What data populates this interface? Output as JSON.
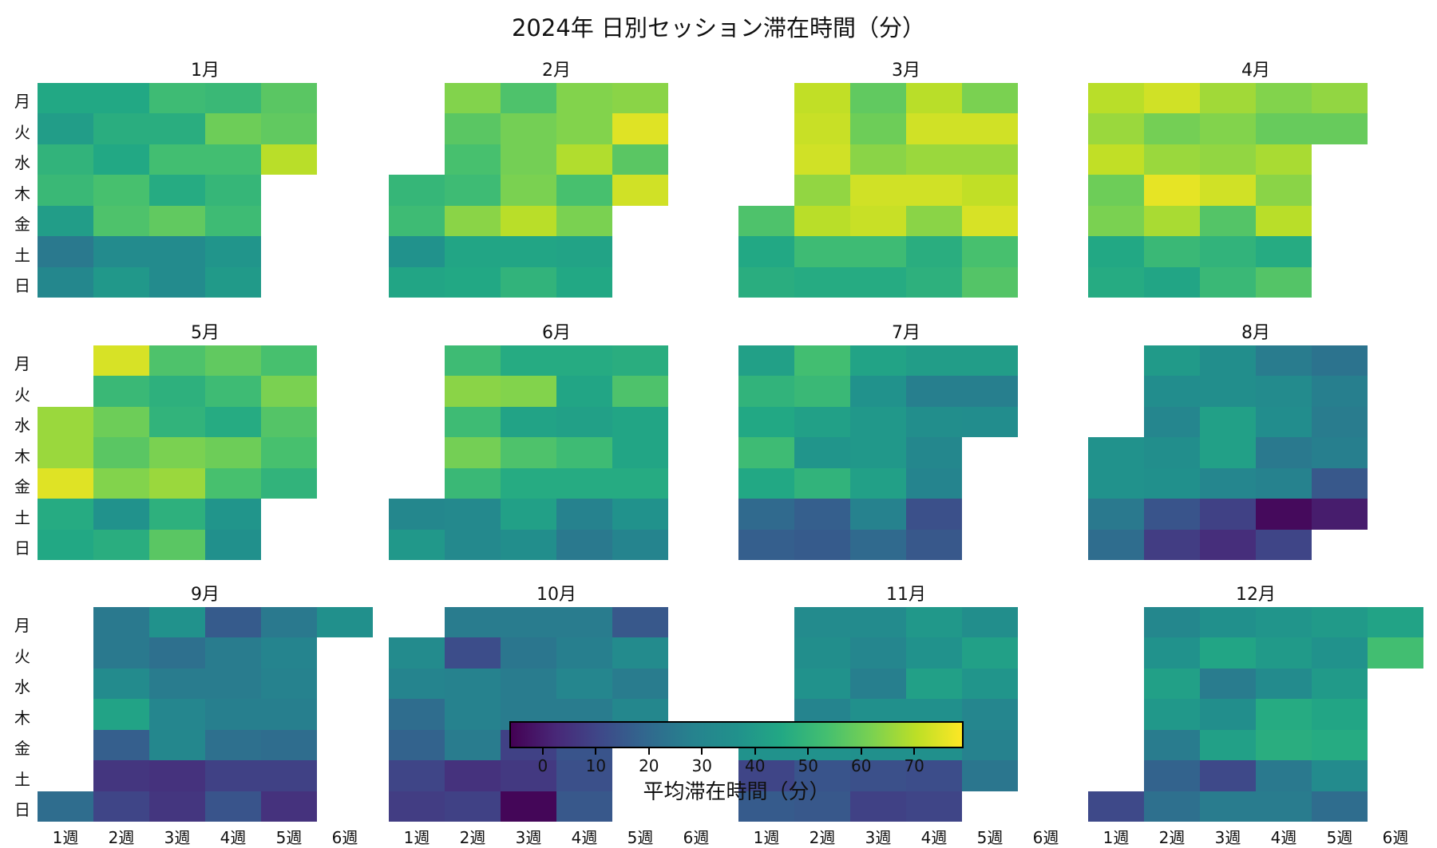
{
  "title": "2024年 日別セッション滞在時間（分）",
  "weekday_labels": [
    "月",
    "火",
    "水",
    "木",
    "金",
    "土",
    "日"
  ],
  "week_labels": [
    "1週",
    "2週",
    "3週",
    "4週",
    "5週",
    "6週"
  ],
  "colorbar": {
    "label": "平均滞在時間（分）",
    "ticks": [
      0,
      10,
      20,
      30,
      40,
      50,
      60,
      70
    ],
    "vmin": -6,
    "vmax": 79,
    "colormap": "viridis"
  },
  "chart_data": {
    "type": "heatmap",
    "title": "2024年 日別セッション滞在時間（分）",
    "value_label": "平均滞在時間（分）",
    "rows": [
      "月",
      "火",
      "水",
      "木",
      "金",
      "土",
      "日"
    ],
    "columns": [
      "1週",
      "2週",
      "3週",
      "4週",
      "5週",
      "6週"
    ],
    "vmin": -6,
    "vmax": 79,
    "months": [
      {
        "label": "1月",
        "values": [
          [
            45,
            45,
            52,
            51,
            57,
            null
          ],
          [
            41,
            47,
            47,
            60,
            58,
            null
          ],
          [
            49,
            45,
            53,
            53,
            70,
            null
          ],
          [
            51,
            54,
            46,
            50,
            null,
            null
          ],
          [
            41,
            55,
            58,
            52,
            null,
            null
          ],
          [
            25,
            33,
            33,
            38,
            null,
            null
          ],
          [
            31,
            39,
            33,
            40,
            null,
            null
          ]
        ]
      },
      {
        "label": "2月",
        "values": [
          [
            null,
            63,
            55,
            63,
            64,
            null
          ],
          [
            null,
            57,
            61,
            63,
            75,
            null
          ],
          [
            null,
            54,
            61,
            69,
            57,
            null
          ],
          [
            50,
            52,
            62,
            54,
            73,
            null
          ],
          [
            52,
            64,
            70,
            62,
            null,
            null
          ],
          [
            37,
            44,
            44,
            43,
            null,
            null
          ],
          [
            44,
            45,
            49,
            45,
            null,
            null
          ]
        ]
      },
      {
        "label": "3月",
        "values": [
          [
            null,
            71,
            58,
            70,
            62,
            null
          ],
          [
            null,
            72,
            60,
            73,
            73,
            null
          ],
          [
            null,
            73,
            64,
            66,
            66,
            null
          ],
          [
            null,
            65,
            73,
            73,
            71,
            null
          ],
          [
            55,
            70,
            72,
            64,
            74,
            null
          ],
          [
            45,
            52,
            52,
            47,
            54,
            null
          ],
          [
            47,
            46,
            46,
            48,
            56,
            null
          ]
        ]
      },
      {
        "label": "4月",
        "values": [
          [
            70,
            73,
            67,
            63,
            65,
            null
          ],
          [
            66,
            61,
            63,
            59,
            59,
            null
          ],
          [
            71,
            66,
            65,
            68,
            null,
            null
          ],
          [
            60,
            76,
            73,
            64,
            null,
            null
          ],
          [
            62,
            68,
            56,
            70,
            null,
            null
          ],
          [
            45,
            51,
            49,
            46,
            null,
            null
          ],
          [
            46,
            44,
            51,
            56,
            null,
            null
          ]
        ]
      },
      {
        "label": "5月",
        "values": [
          [
            null,
            74,
            55,
            58,
            54,
            null
          ],
          [
            null,
            51,
            48,
            52,
            62,
            null
          ],
          [
            66,
            60,
            49,
            46,
            56,
            null
          ],
          [
            66,
            57,
            62,
            60,
            54,
            null
          ],
          [
            75,
            63,
            66,
            54,
            49,
            null
          ],
          [
            46,
            37,
            48,
            38,
            null,
            null
          ],
          [
            45,
            47,
            57,
            36,
            null,
            null
          ]
        ]
      },
      {
        "label": "6月",
        "values": [
          [
            null,
            52,
            46,
            46,
            47,
            null
          ],
          [
            null,
            64,
            63,
            44,
            55,
            null
          ],
          [
            null,
            52,
            43,
            42,
            44,
            null
          ],
          [
            null,
            61,
            55,
            52,
            44,
            null
          ],
          [
            null,
            51,
            46,
            46,
            46,
            null
          ],
          [
            31,
            32,
            42,
            28,
            37,
            null
          ],
          [
            39,
            32,
            35,
            25,
            29,
            null
          ]
        ]
      },
      {
        "label": "7月",
        "values": [
          [
            42,
            53,
            43,
            41,
            41,
            null
          ],
          [
            49,
            51,
            37,
            27,
            27,
            null
          ],
          [
            45,
            42,
            39,
            35,
            34,
            null
          ],
          [
            52,
            38,
            39,
            31,
            null,
            null
          ],
          [
            45,
            49,
            42,
            29,
            null,
            null
          ],
          [
            20,
            17,
            28,
            13,
            null,
            null
          ],
          [
            17,
            16,
            20,
            15,
            null,
            null
          ]
        ]
      },
      {
        "label": "8月",
        "values": [
          [
            null,
            40,
            35,
            26,
            23,
            null
          ],
          [
            null,
            34,
            35,
            33,
            27,
            null
          ],
          [
            null,
            30,
            42,
            34,
            26,
            null
          ],
          [
            37,
            35,
            42,
            25,
            27,
            null
          ],
          [
            37,
            36,
            30,
            28,
            15,
            null
          ],
          [
            25,
            14,
            9,
            -4,
            0,
            null
          ],
          [
            21,
            8,
            4,
            10,
            null,
            null
          ]
        ]
      },
      {
        "label": "9月",
        "values": [
          [
            null,
            25,
            37,
            16,
            25,
            36
          ],
          [
            null,
            25,
            22,
            26,
            29,
            null
          ],
          [
            null,
            33,
            26,
            26,
            28,
            null
          ],
          [
            null,
            43,
            30,
            27,
            27,
            null
          ],
          [
            null,
            17,
            31,
            22,
            21,
            null
          ],
          [
            null,
            6,
            5,
            9,
            9,
            null
          ],
          [
            21,
            10,
            6,
            14,
            5,
            null
          ]
        ]
      },
      {
        "label": "10月",
        "values": [
          [
            null,
            26,
            26,
            26,
            15,
            null
          ],
          [
            33,
            12,
            24,
            27,
            33,
            null
          ],
          [
            29,
            28,
            26,
            30,
            26,
            null
          ],
          [
            21,
            28,
            26,
            26,
            31,
            null
          ],
          [
            18,
            26,
            9,
            14,
            null,
            null
          ],
          [
            10,
            5,
            7,
            13,
            null,
            null
          ],
          [
            8,
            9,
            -5,
            15,
            null,
            null
          ]
        ]
      },
      {
        "label": "11月",
        "values": [
          [
            null,
            33,
            33,
            39,
            35,
            null
          ],
          [
            null,
            35,
            30,
            37,
            42,
            null
          ],
          [
            null,
            37,
            27,
            42,
            38,
            null
          ],
          [
            null,
            29,
            36,
            36,
            30,
            null
          ],
          [
            37,
            37,
            36,
            36,
            28,
            null
          ],
          [
            10,
            14,
            13,
            12,
            24,
            null
          ],
          [
            16,
            15,
            9,
            10,
            null,
            null
          ]
        ]
      },
      {
        "label": "12月",
        "values": [
          [
            null,
            31,
            36,
            38,
            40,
            43
          ],
          [
            null,
            37,
            44,
            40,
            37,
            53
          ],
          [
            null,
            42,
            26,
            33,
            40,
            null
          ],
          [
            null,
            39,
            35,
            46,
            44,
            null
          ],
          [
            null,
            26,
            42,
            47,
            46,
            null
          ],
          [
            null,
            18,
            11,
            25,
            33,
            null
          ],
          [
            11,
            22,
            26,
            26,
            21,
            null
          ]
        ]
      }
    ]
  }
}
